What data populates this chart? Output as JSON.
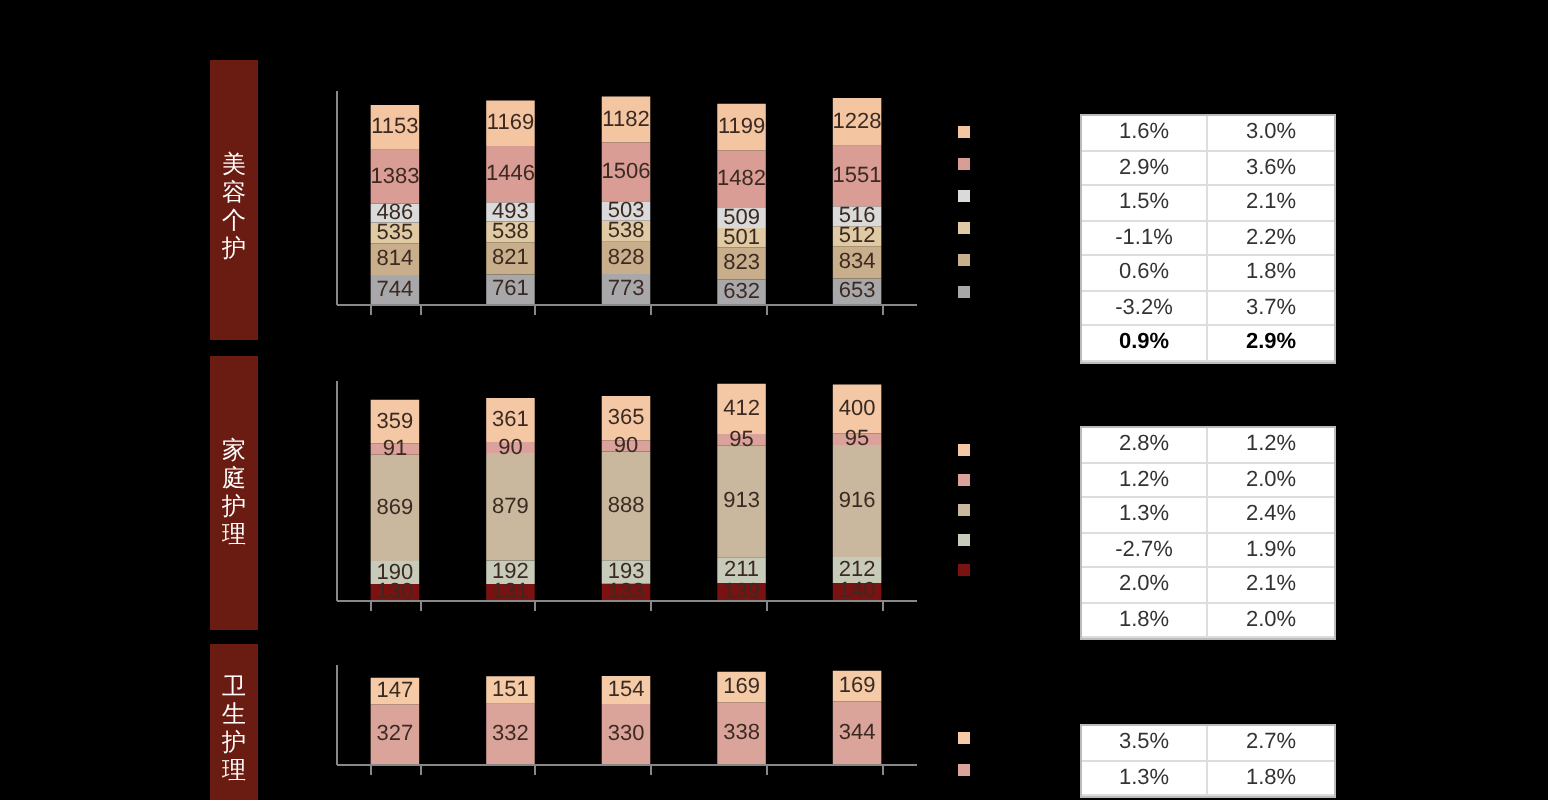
{
  "chart_data": [
    {
      "type": "bar",
      "title": "美容个护",
      "categories": [
        null,
        null,
        null,
        null,
        null
      ],
      "stacked": true,
      "data_labels": true,
      "series": [
        {
          "color": "#a8a8aa",
          "values": [
            744,
            761,
            773,
            632,
            653
          ]
        },
        {
          "color": "#c9ae8c",
          "values": [
            814,
            821,
            828,
            823,
            834
          ]
        },
        {
          "color": "#dfcaa4",
          "values": [
            535,
            538,
            538,
            501,
            512
          ]
        },
        {
          "color": "#dadada",
          "values": [
            486,
            493,
            503,
            509,
            516
          ]
        },
        {
          "color": "#d99d95",
          "values": [
            1383,
            1446,
            1506,
            1482,
            1551
          ]
        },
        {
          "color": "#f3c5a0",
          "values": [
            1153,
            1169,
            1182,
            1199,
            1228
          ]
        }
      ]
    },
    {
      "type": "other",
      "annotations": [
        "1.6%",
        "3.0%",
        "2.9%",
        "3.6%",
        "1.5%",
        "2.1%",
        "-1.1%",
        "2.2%",
        "0.6%",
        "1.8%",
        "-3.2%",
        "3.7%",
        "0.9%",
        "2.9%"
      ]
    },
    {
      "type": "bar",
      "title": "家庭护理",
      "categories": [
        null,
        null,
        null,
        null,
        null
      ],
      "stacked": true,
      "data_labels": true,
      "series": [
        {
          "color": "#7b1212",
          "values": [
            130,
            131,
            133,
            139,
            140
          ]
        },
        {
          "color": "#c8cbb9",
          "values": [
            190,
            192,
            193,
            211,
            212
          ]
        },
        {
          "color": "#c9b89d",
          "values": [
            869,
            879,
            888,
            913,
            916
          ]
        },
        {
          "color": "#dba29b",
          "values": [
            91,
            90,
            90,
            95,
            95
          ]
        },
        {
          "color": "#f4c7a5",
          "values": [
            359,
            361,
            365,
            412,
            400
          ]
        }
      ]
    },
    {
      "type": "other",
      "annotations": [
        "2.8%",
        "1.2%",
        "1.2%",
        "2.0%",
        "1.3%",
        "2.4%",
        "-2.7%",
        "1.9%",
        "2.0%",
        "2.1%",
        "1.8%",
        "2.0%"
      ]
    },
    {
      "type": "bar",
      "title": "卫生护理",
      "categories": [
        null,
        null,
        null,
        null,
        null
      ],
      "stacked": true,
      "data_labels": true,
      "series": [
        {
          "color": "#dba49b",
          "values": [
            327,
            332,
            330,
            338,
            344
          ]
        },
        {
          "color": "#f5cba7",
          "values": [
            147,
            151,
            154,
            169,
            169
          ]
        }
      ]
    },
    {
      "type": "other",
      "annotations": [
        "3.5%",
        "2.7%",
        "1.3%",
        "1.8%"
      ]
    }
  ]
}
